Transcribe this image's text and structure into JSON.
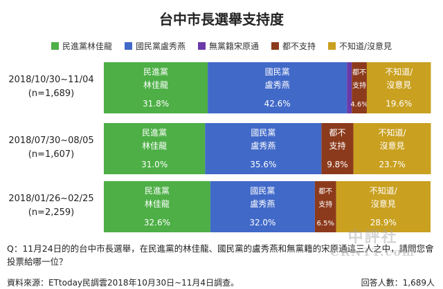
{
  "title": "台中市長選舉支持度",
  "legend": [
    {
      "label": "民進黨林佳龍",
      "color": "#4daf46"
    },
    {
      "label": "國民黨盧秀燕",
      "color": "#4169c8"
    },
    {
      "label": "無黨籍宋原通",
      "color": "#6a3aa8"
    },
    {
      "label": "都不支持",
      "color": "#8c3a1c"
    },
    {
      "label": "不知道/沒意見",
      "color": "#c9a020"
    }
  ],
  "chart_data": {
    "type": "bar",
    "orientation": "horizontal",
    "stacked": true,
    "categories": [
      {
        "line1": "2018/10/30~11/04",
        "line2": "(n=1,689)"
      },
      {
        "line1": "2018/07/30~08/05",
        "line2": "(n=1,607)"
      },
      {
        "line1": "2018/01/26~02/25",
        "line2": "(n=2,259)"
      }
    ],
    "series": [
      {
        "name": "民進黨林佳龍",
        "color": "#4daf46",
        "label_lines": [
          "民進黨",
          "林佳龍"
        ],
        "values": [
          31.8,
          31.0,
          32.6
        ]
      },
      {
        "name": "國民黨盧秀燕",
        "color": "#4169c8",
        "label_lines": [
          "國民黨",
          "盧秀燕"
        ],
        "values": [
          42.6,
          35.6,
          32.0
        ]
      },
      {
        "name": "無黨籍宋原通",
        "color": "#6a3aa8",
        "label_lines": [],
        "values": [
          1.5,
          0,
          0
        ]
      },
      {
        "name": "都不支持",
        "color": "#8c3a1c",
        "label_lines": [
          "都不",
          "支持"
        ],
        "values": [
          4.6,
          9.8,
          6.5
        ]
      },
      {
        "name": "不知道/沒意見",
        "color": "#c9a020",
        "label_lines": [
          "不知道/",
          "沒意見"
        ],
        "values": [
          19.6,
          23.7,
          28.9
        ]
      }
    ],
    "value_labels": [
      [
        "31.8%",
        "42.6%",
        "",
        "4.6%",
        "19.6%"
      ],
      [
        "31.0%",
        "35.6%",
        "",
        "9.8%",
        "23.7%"
      ],
      [
        "32.6%",
        "32.0%",
        "",
        "6.5%",
        "28.9%"
      ]
    ],
    "xlim": [
      0,
      100
    ],
    "legend_position": "top"
  },
  "question": "Q：11月24日的的台中市長選舉，在民進黨的林佳龍、國民黨的盧秀燕和無黨籍的宋原通這三人之中，請問您會投票給哪一位？",
  "source": "資料來源：ETtoday民調雲2018年10月30日~11月4日調查。",
  "respondents": "回答人數：1,689人",
  "watermark": {
    "line1": "中評社",
    "line2": "CRNTT.com"
  }
}
